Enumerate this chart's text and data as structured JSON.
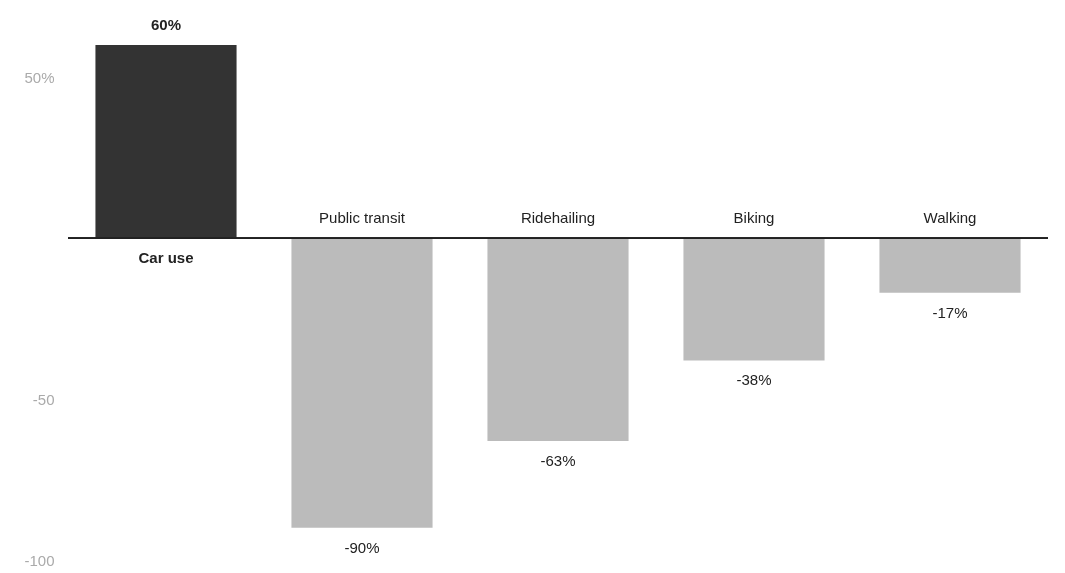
{
  "chart_data": {
    "type": "bar",
    "categories": [
      "Car use",
      "Public transit",
      "Ridehailing",
      "Biking",
      "Walking"
    ],
    "values": [
      60,
      -90,
      -63,
      -38,
      -17
    ],
    "colors": [
      "#333333",
      "#bbbbbb",
      "#bbbbbb",
      "#bbbbbb",
      "#bbbbbb"
    ],
    "value_labels": [
      "60%",
      "-90%",
      "-63%",
      "-38%",
      "-17%"
    ],
    "ylim": [
      -100,
      60
    ],
    "yticks": [
      {
        "value": 50,
        "label": "50%"
      },
      {
        "value": -50,
        "label": "-50"
      },
      {
        "value": -100,
        "label": "-100"
      }
    ],
    "grid": false
  }
}
